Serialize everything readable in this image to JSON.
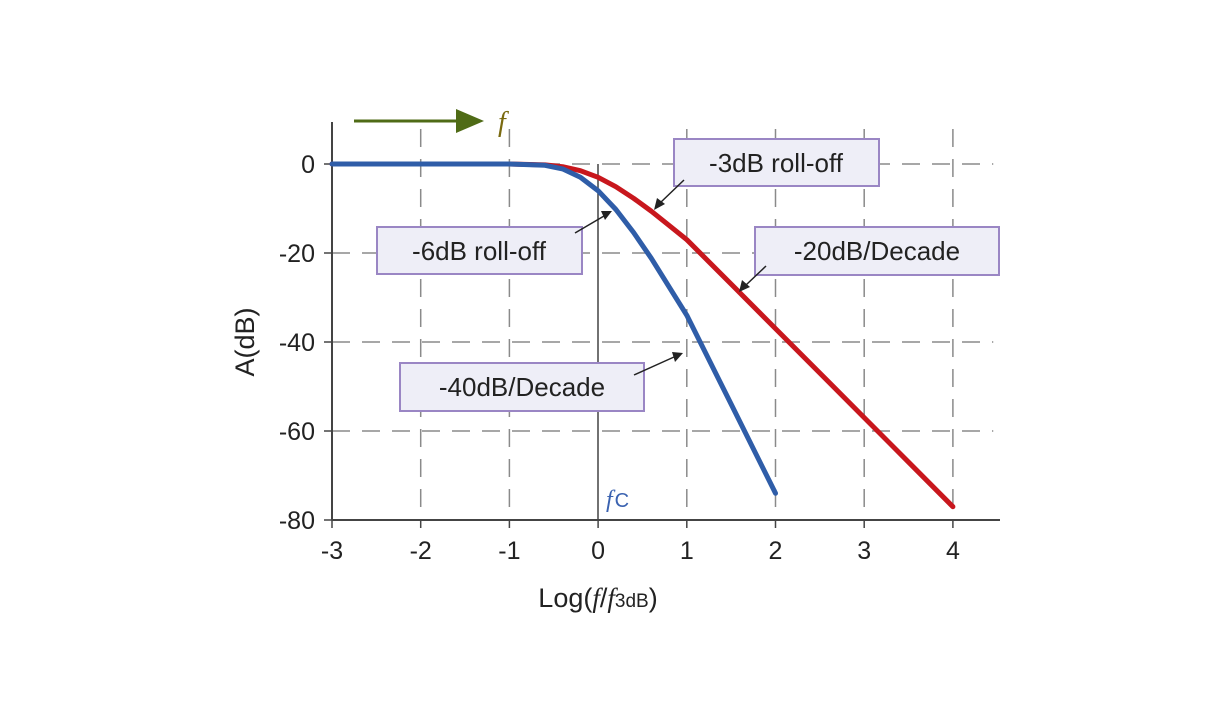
{
  "chart_data": {
    "type": "line",
    "xlabel": {
      "main": "Log(",
      "f": "f",
      "slash": "/",
      "f2": "f",
      "sub": "3dB",
      "close": ")"
    },
    "ylabel": "A(dB)",
    "xlim": [
      -3,
      4.5
    ],
    "ylim": [
      -80,
      9
    ],
    "x_ticks": [
      "-3",
      "-2",
      "-1",
      "0",
      "1",
      "2",
      "3",
      "4"
    ],
    "y_ticks": [
      "0",
      "-20",
      "-40",
      "-60",
      "-80"
    ],
    "grid": true,
    "series": [
      {
        "color": "#c8171d",
        "x": [
          -3,
          -2,
          -1,
          -0.6,
          -0.4,
          -0.2,
          0,
          0.2,
          0.4,
          0.6,
          0.8,
          1,
          1.5,
          2,
          2.5,
          3,
          3.5,
          4
        ],
        "y": [
          0,
          0,
          0,
          -0.2,
          -0.6,
          -1.5,
          -3,
          -5.1,
          -7.7,
          -10.6,
          -13.8,
          -17,
          -27,
          -37,
          -47,
          -57,
          -67,
          -77
        ]
      },
      {
        "color": "#2f5da8",
        "x": [
          -3,
          -2,
          -1,
          -0.6,
          -0.4,
          -0.2,
          0,
          0.2,
          0.4,
          0.6,
          1,
          1.5,
          2
        ],
        "y": [
          0,
          0,
          0,
          -0.3,
          -1.1,
          -3,
          -6,
          -10.2,
          -15.4,
          -21.2,
          -34,
          -54,
          -74
        ]
      }
    ],
    "annotations": [
      {
        "text": "-3dB roll-off"
      },
      {
        "text": "-6dB roll-off"
      },
      {
        "text": "-20dB/Decade"
      },
      {
        "text": "-40dB/Decade"
      }
    ],
    "markers": {
      "frequency_arrow_label": "f",
      "cutoff_label_f": "f",
      "cutoff_label_sub": "C"
    }
  },
  "colors": {
    "red": "#c8171d",
    "blue": "#2f5da8",
    "arrow": "#4f6b16",
    "box_fill": "#eeeef7",
    "box_stroke": "#9a86c4"
  }
}
